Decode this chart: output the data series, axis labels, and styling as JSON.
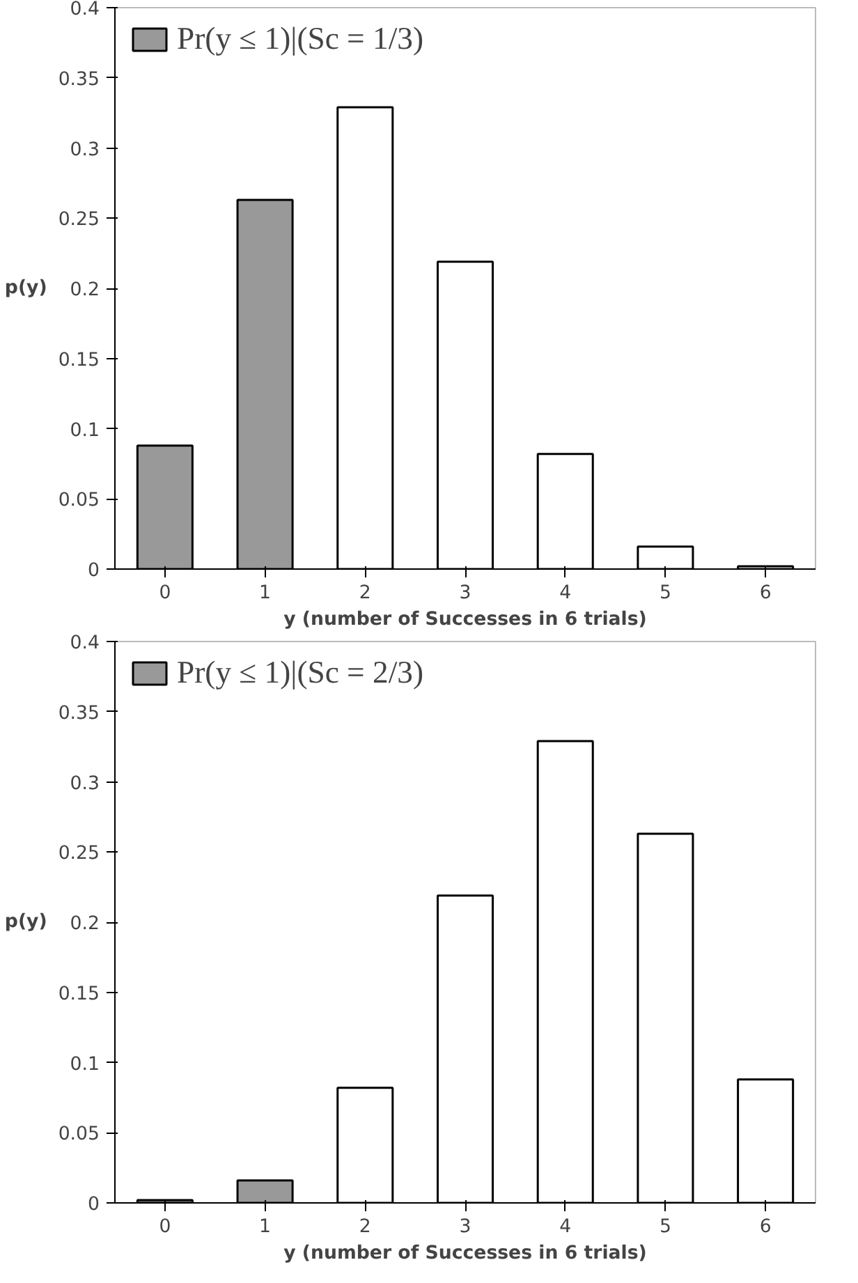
{
  "chart_data": [
    {
      "type": "bar",
      "xlabel": "y (number of Successes in 6 trials)",
      "ylabel": "p(y)",
      "categories": [
        "0",
        "1",
        "2",
        "3",
        "4",
        "5",
        "6"
      ],
      "ylim": [
        0,
        0.4
      ],
      "yticks": [
        0,
        0.05,
        0.1,
        0.15,
        0.2,
        0.25,
        0.3,
        0.35,
        0.4
      ],
      "grid": false,
      "legend": "top left",
      "series": [
        {
          "name": "Pr(y ≤ 1)|(Sc = 1/3)",
          "color": "#999999",
          "values": [
            0.088,
            0.263,
            null,
            null,
            null,
            null,
            null
          ]
        },
        {
          "color": "#ffffff",
          "values": [
            null,
            null,
            0.329,
            0.219,
            0.082,
            0.016,
            0.002
          ]
        }
      ]
    },
    {
      "type": "bar",
      "xlabel": "y (number of Successes in 6 trials)",
      "ylabel": "p(y)",
      "categories": [
        "0",
        "1",
        "2",
        "3",
        "4",
        "5",
        "6"
      ],
      "ylim": [
        0,
        0.4
      ],
      "yticks": [
        0,
        0.05,
        0.1,
        0.15,
        0.2,
        0.25,
        0.3,
        0.35,
        0.4
      ],
      "grid": false,
      "legend": "top left",
      "series": [
        {
          "name": "Pr(y ≤ 1)|(Sc = 2/3)",
          "color": "#999999",
          "values": [
            0.002,
            0.016,
            null,
            null,
            null,
            null,
            null
          ]
        },
        {
          "color": "#ffffff",
          "values": [
            null,
            null,
            0.082,
            0.219,
            0.329,
            0.263,
            0.088
          ]
        }
      ]
    }
  ]
}
